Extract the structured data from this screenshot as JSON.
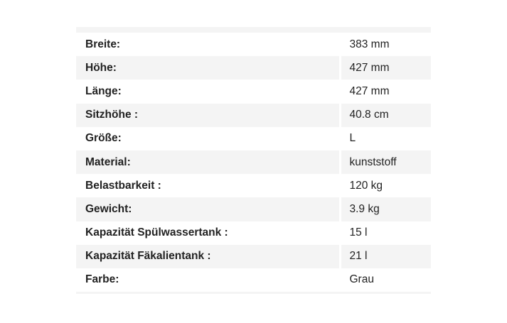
{
  "rows": [
    {
      "label": "Breite:",
      "value": "383 mm"
    },
    {
      "label": "Höhe:",
      "value": "427 mm"
    },
    {
      "label": "Länge:",
      "value": "427 mm"
    },
    {
      "label": "Sitzhöhe :",
      "value": "40.8 cm"
    },
    {
      "label": "Größe:",
      "value": "L"
    },
    {
      "label": "Material:",
      "value": "kunststoff"
    },
    {
      "label": "Belastbarkeit :",
      "value": "120 kg"
    },
    {
      "label": "Gewicht:",
      "value": "3.9 kg"
    },
    {
      "label": "Kapazität Spülwassertank :",
      "value": "15 l"
    },
    {
      "label": "Kapazität Fäkalientank :",
      "value": "21 l"
    },
    {
      "label": "Farbe:",
      "value": "Grau"
    }
  ]
}
